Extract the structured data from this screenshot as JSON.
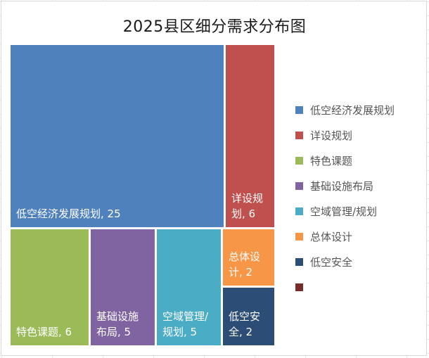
{
  "chart_data": {
    "type": "treemap",
    "title": "2025县区细分需求分布图",
    "items": [
      {
        "name": "低空经济发展规划",
        "value": 25,
        "color": "#4f81bd",
        "label_lines": [
          "低空经济发展规划, 25"
        ]
      },
      {
        "name": "详设规划",
        "value": 6,
        "color": "#c0504d",
        "label_lines": [
          "详设规",
          "划, 6"
        ]
      },
      {
        "name": "特色课题",
        "value": 6,
        "color": "#9bbb59",
        "label_lines": [
          "特色课题, 6"
        ]
      },
      {
        "name": "基础设施布局",
        "value": 5,
        "color": "#8064a2",
        "label_lines": [
          "基础设施",
          "布局, 5"
        ]
      },
      {
        "name": "空域管理/规划",
        "value": 5,
        "color": "#4bacc6",
        "label_lines": [
          "空域管理/",
          "规划, 5"
        ]
      },
      {
        "name": "总体设计",
        "value": 2,
        "color": "#f79646",
        "label_lines": [
          "总体设",
          "计, 2"
        ]
      },
      {
        "name": "低空安全",
        "value": 2,
        "color": "#2c4d75",
        "label_lines": [
          "低空安",
          "全, 2"
        ]
      }
    ],
    "legend": [
      {
        "label": "低空经济发展规划",
        "color": "#4f81bd"
      },
      {
        "label": "详设规划",
        "color": "#c0504d"
      },
      {
        "label": "特色课题",
        "color": "#9bbb59"
      },
      {
        "label": "基础设施布局",
        "color": "#8064a2"
      },
      {
        "label": "空域管理/规划",
        "color": "#4bacc6"
      },
      {
        "label": "总体设计",
        "color": "#f79646"
      },
      {
        "label": "低空安全",
        "color": "#2c4d75"
      },
      {
        "label": "",
        "color": "#772c2a"
      }
    ],
    "legend_position": "right"
  }
}
